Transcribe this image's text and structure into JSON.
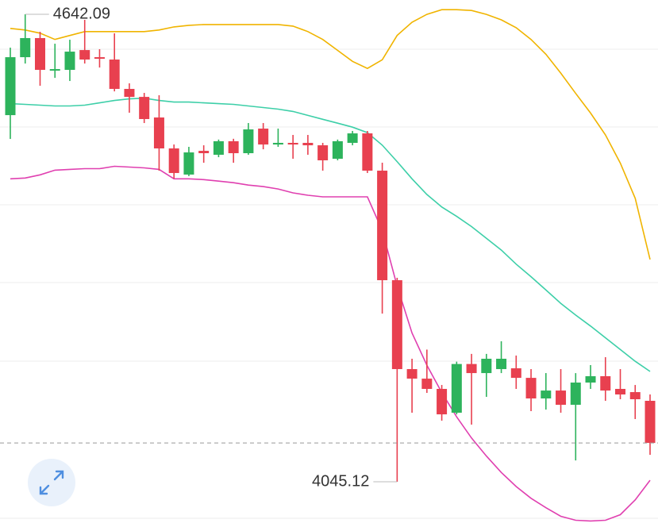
{
  "chart_data": {
    "type": "candlestick",
    "ylim": [
      3987.34,
      4660.33
    ],
    "up_color": "#2db35c",
    "down_color": "#e8404f",
    "open": [
      4513.3,
      4587.3,
      4611.7,
      4570.1,
      4571.1,
      4596.4,
      4587.3,
      4584.3,
      4546.8,
      4536.6,
      4510.3,
      4470.8,
      4437.4,
      4467.7,
      4462.7,
      4480.0,
      4464.7,
      4496.1,
      4475.8,
      4477.9,
      4477.9,
      4474.8,
      4457.6,
      4477.9,
      4490.0,
      4442.4,
      4302.5,
      4189.0,
      4176.8,
      4163.7,
      4133.3,
      4195.5,
      4183.9,
      4189.0,
      4190.0,
      4177.8,
      4151.5,
      4161.6,
      4143.4,
      4171.8,
      4179.9,
      4163.7,
      4159.6,
      4148.5
    ],
    "high": [
      4599.5,
      4642.09,
      4619.8,
      4604.5,
      4609.6,
      4635.0,
      4597.5,
      4617.7,
      4553.9,
      4541.7,
      4538.7,
      4475.8,
      4472.8,
      4474.8,
      4482.1,
      4483.1,
      4503.2,
      4503.2,
      4496.1,
      4488.0,
      4488.0,
      4477.9,
      4482.1,
      4493.1,
      4493.1,
      4452.5,
      4305.6,
      4202.2,
      4213.9,
      4168.7,
      4198.5,
      4208.4,
      4208.4,
      4224.5,
      4206.3,
      4189.0,
      4183.9,
      4189.0,
      4183.9,
      4194.1,
      4204.2,
      4189.0,
      4168.7,
      4156.6
    ],
    "low": [
      4482.9,
      4579.2,
      4550.8,
      4560.9,
      4556.9,
      4579.2,
      4574.1,
      4543.7,
      4516.4,
      4503.2,
      4442.4,
      4432.3,
      4435.4,
      4452.5,
      4459.6,
      4452.5,
      4462.7,
      4469.7,
      4472.8,
      4457.6,
      4462.7,
      4442.4,
      4455.6,
      4474.8,
      4439.4,
      4259.9,
      4045.12,
      4133.3,
      4158.6,
      4123.1,
      4131.2,
      4118.1,
      4153.5,
      4183.9,
      4163.7,
      4135.3,
      4137.3,
      4133.3,
      4072.4,
      4163.7,
      4148.5,
      4150.5,
      4125.2,
      4079.5
    ],
    "close": [
      4587.3,
      4611.7,
      4571.1,
      4572.1,
      4594.4,
      4584.3,
      4585.3,
      4546.8,
      4536.6,
      4508.3,
      4470.8,
      4439.4,
      4465.7,
      4464.7,
      4480.0,
      4464.7,
      4495.1,
      4475.8,
      4477.9,
      4475.8,
      4474.8,
      4455.6,
      4480.0,
      4490.0,
      4442.4,
      4302.5,
      4189.0,
      4176.8,
      4163.7,
      4131.2,
      4195.5,
      4183.9,
      4202.2,
      4202.2,
      4177.8,
      4151.5,
      4161.6,
      4143.4,
      4171.8,
      4179.9,
      4161.6,
      4156.6,
      4150.5,
      4094.7
    ],
    "bands": {
      "upper": {
        "color": "#f0b400",
        "values": [
          4624,
          4622,
          4618,
          4610,
          4615,
          4620,
          4620,
          4620,
          4620,
          4620,
          4622,
          4626,
          4628,
          4629,
          4629,
          4629,
          4629,
          4629,
          4629,
          4627,
          4620,
          4610,
          4596,
          4582,
          4573,
          4584,
          4615,
          4632,
          4642,
          4648,
          4648,
          4647,
          4642,
          4635,
          4625,
          4610,
          4591,
          4567,
          4541,
          4516,
          4488,
          4452,
          4407,
          4329
        ]
      },
      "middle": {
        "color": "#3dcfa8",
        "values": [
          4528,
          4527,
          4526,
          4525,
          4525,
          4526,
          4529,
          4532,
          4534,
          4535,
          4532,
          4530,
          4530,
          4529,
          4528,
          4527,
          4525,
          4523,
          4521,
          4518,
          4513,
          4508,
          4503,
          4498,
          4491,
          4475,
          4454,
          4432,
          4412,
          4396,
          4384,
          4371,
          4356,
          4341,
          4323,
          4307,
          4290,
          4273,
          4258,
          4244,
          4229,
          4214,
          4199,
          4186
        ]
      },
      "lower": {
        "color": "#e040b0",
        "values": [
          4432,
          4433,
          4437,
          4443,
          4444,
          4445,
          4445,
          4448,
          4447,
          4446,
          4444,
          4432,
          4432,
          4431,
          4429,
          4427,
          4424,
          4422,
          4419,
          4414,
          4411,
          4409,
          4409,
          4409,
          4409,
          4366,
          4295,
          4235,
          4194,
          4159,
          4128,
          4101,
          4078,
          4057,
          4039,
          4024,
          4012,
          4001,
          3996,
          3995,
          3996,
          4003,
          4022,
          4047
        ]
      }
    }
  }
}
